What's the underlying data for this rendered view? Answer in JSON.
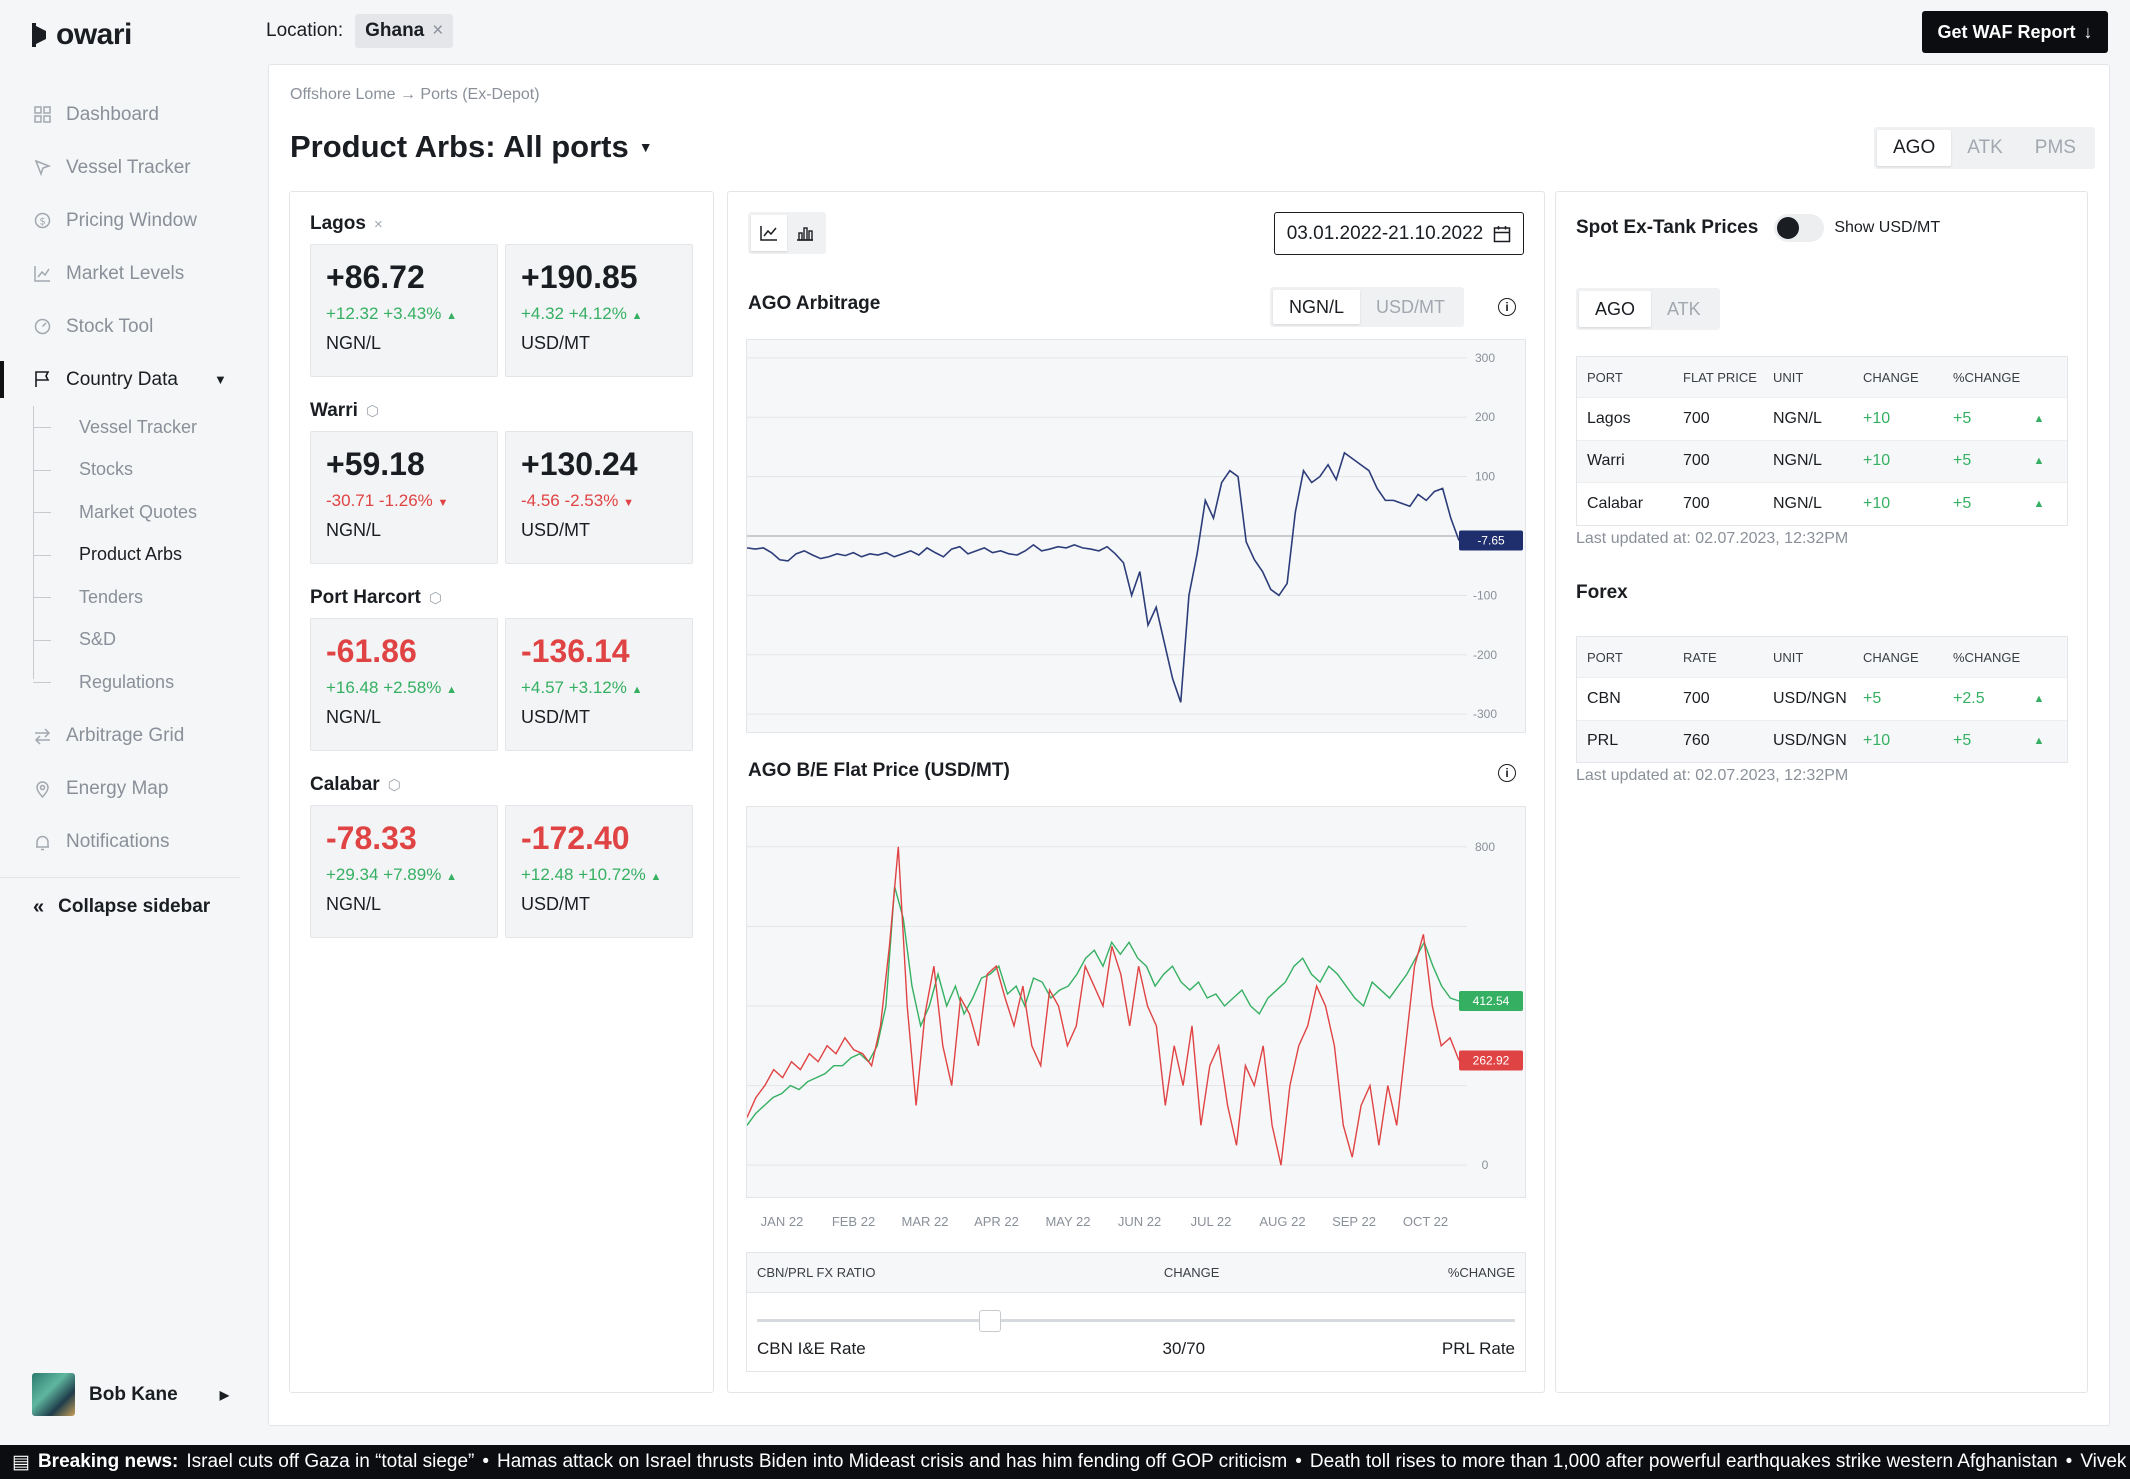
{
  "app": {
    "logo_text": "owari"
  },
  "sidebar": {
    "items": [
      {
        "label": "Dashboard",
        "icon": "grid-icon"
      },
      {
        "label": "Vessel Tracker",
        "icon": "cursor-icon"
      },
      {
        "label": "Pricing Window",
        "icon": "dollar-circle-icon"
      },
      {
        "label": "Market Levels",
        "icon": "line-chart-icon"
      },
      {
        "label": "Stock Tool",
        "icon": "gauge-icon"
      },
      {
        "label": "Country Data",
        "icon": "flag-icon"
      }
    ],
    "subitems": [
      "Vessel Tracker",
      "Stocks",
      "Market Quotes",
      "Product Arbs",
      "Tenders",
      "S&D",
      "Regulations"
    ],
    "items_after": [
      {
        "label": "Arbitrage Grid",
        "icon": "swap-icon"
      },
      {
        "label": "Energy Map",
        "icon": "pin-icon"
      },
      {
        "label": "Notifications",
        "icon": "bell-icon"
      }
    ],
    "collapse_label": "Collapse sidebar",
    "user_name": "Bob Kane"
  },
  "topbar": {
    "location_label": "Location:",
    "location_value": "Ghana",
    "report_button": "Get WAF Report"
  },
  "main": {
    "breadcrumb": "Offshore Lome → Ports (Ex-Depot)",
    "title": "Product Arbs: All ports",
    "product_tabs": [
      "AGO",
      "ATK",
      "PMS"
    ]
  },
  "ports": [
    {
      "name": "Lagos",
      "action": "×",
      "ngn": {
        "value": "+86.72",
        "change": "+12.32 +3.43%",
        "dir": "up",
        "unit": "NGN/L"
      },
      "usd": {
        "value": "+190.85",
        "change": "+4.32 +4.12%",
        "dir": "up",
        "unit": "USD/MT"
      }
    },
    {
      "name": "Warri",
      "action": "⬡",
      "ngn": {
        "value": "+59.18",
        "change": "-30.71 -1.26%",
        "dir": "down",
        "unit": "NGN/L"
      },
      "usd": {
        "value": "+130.24",
        "change": "-4.56 -2.53%",
        "dir": "down",
        "unit": "USD/MT"
      }
    },
    {
      "name": "Port Harcort",
      "action": "⬡",
      "ngn": {
        "value": "-61.86",
        "change": "+16.48 +2.58%",
        "dir": "up",
        "unit": "NGN/L"
      },
      "usd": {
        "value": "-136.14",
        "change": "+4.57 +3.12%",
        "dir": "up",
        "unit": "USD/MT"
      }
    },
    {
      "name": "Calabar",
      "action": "⬡",
      "ngn": {
        "value": "-78.33",
        "change": "+29.34 +7.89%",
        "dir": "up",
        "unit": "NGN/L"
      },
      "usd": {
        "value": "-172.40",
        "change": "+12.48 +10.72%",
        "dir": "up",
        "unit": "USD/MT"
      }
    }
  ],
  "middle": {
    "date_range": "03.01.2022-21.10.2022",
    "arb_title": "AGO Arbitrage",
    "unit_tabs": [
      "NGN/L",
      "USD/MT"
    ],
    "flat_title": "AGO B/E Flat Price (USD/MT)",
    "ratio": {
      "col1": "CBN/PRL FX RATIO",
      "col2": "CHANGE",
      "col3": "%CHANGE",
      "left": "CBN I&E Rate",
      "value": "30/70",
      "right": "PRL Rate",
      "position": 0.3
    }
  },
  "chart_data": [
    {
      "type": "line",
      "ylim": [
        -330,
        330
      ],
      "yticks": [
        300,
        200,
        100,
        -100,
        -200,
        -300
      ],
      "current_label": "-7.65",
      "colors": {
        "line": "#2d3d7a",
        "label": "#1f2f6e"
      },
      "series": [
        {
          "values": [
            -20,
            -22,
            -20,
            -28,
            -40,
            -42,
            -30,
            -25,
            -32,
            -38,
            -35,
            -30,
            -33,
            -28,
            -35,
            -30,
            -32,
            -28,
            -35,
            -30,
            -25,
            -32,
            -20,
            -28,
            -35,
            -22,
            -18,
            -30,
            -25,
            -20,
            -28,
            -25,
            -30,
            -32,
            -25,
            -15,
            -25,
            -22,
            -18,
            -20,
            -15,
            -20,
            -22,
            -25,
            -18,
            -30,
            -45,
            -100,
            -60,
            -150,
            -120,
            -180,
            -240,
            -280,
            -100,
            -30,
            60,
            30,
            90,
            110,
            100,
            -10,
            -40,
            -60,
            -90,
            -100,
            -80,
            40,
            110,
            90,
            100,
            120,
            95,
            140,
            130,
            120,
            110,
            80,
            60,
            60,
            55,
            50,
            70,
            60,
            75,
            80,
            30,
            -7.65
          ]
        }
      ]
    },
    {
      "type": "line",
      "xlabel_ticks": [
        "JAN 22",
        "FEB 22",
        "MAR 22",
        "APR 22",
        "MAY 22",
        "JUN 22",
        "JUL 22",
        "AUG 22",
        "SEP 22",
        "OCT 22"
      ],
      "ylim": [
        -80,
        900
      ],
      "yticks": [
        800,
        0
      ],
      "series": [
        {
          "label": "412.54",
          "color": "#35b062",
          "values": [
            100,
            130,
            150,
            170,
            180,
            200,
            190,
            210,
            220,
            230,
            250,
            250,
            270,
            280,
            260,
            300,
            400,
            700,
            620,
            450,
            350,
            400,
            480,
            400,
            450,
            380,
            420,
            470,
            480,
            500,
            430,
            450,
            400,
            470,
            460,
            420,
            440,
            450,
            480,
            520,
            540,
            500,
            560,
            530,
            560,
            520,
            500,
            450,
            480,
            500,
            460,
            440,
            460,
            420,
            430,
            400,
            420,
            440,
            400,
            380,
            420,
            440,
            460,
            500,
            520,
            480,
            460,
            500,
            480,
            450,
            420,
            400,
            460,
            440,
            420,
            450,
            480,
            520,
            560,
            500,
            450,
            420,
            412.54
          ]
        },
        {
          "label": "262.92",
          "color": "#e04343",
          "values": [
            120,
            170,
            200,
            240,
            220,
            260,
            240,
            280,
            260,
            300,
            280,
            320,
            290,
            280,
            250,
            350,
            550,
            800,
            400,
            150,
            380,
            500,
            300,
            200,
            420,
            380,
            300,
            480,
            500,
            420,
            350,
            450,
            300,
            250,
            440,
            400,
            300,
            350,
            500,
            450,
            400,
            550,
            480,
            350,
            500,
            400,
            350,
            150,
            300,
            200,
            350,
            100,
            250,
            300,
            150,
            50,
            250,
            200,
            300,
            100,
            0,
            200,
            300,
            350,
            450,
            400,
            300,
            100,
            20,
            150,
            200,
            50,
            200,
            100,
            300,
            500,
            580,
            400,
            300,
            320,
            262.92
          ]
        }
      ]
    }
  ],
  "right": {
    "spot_title": "Spot Ex-Tank Prices",
    "toggle_label": "Show USD/MT",
    "tabs": [
      "AGO",
      "ATK"
    ],
    "spot_headers": [
      "PORT",
      "FLAT PRICE",
      "UNIT",
      "CHANGE",
      "%CHANGE"
    ],
    "spot_rows": [
      [
        "Lagos",
        "700",
        "NGN/L",
        "+10",
        "+5"
      ],
      [
        "Warri",
        "700",
        "NGN/L",
        "+10",
        "+5"
      ],
      [
        "Calabar",
        "700",
        "NGN/L",
        "+10",
        "+5"
      ]
    ],
    "updated": "Last updated at: 02.07.2023, 12:32PM",
    "forex_title": "Forex",
    "forex_headers": [
      "PORT",
      "RATE",
      "UNIT",
      "CHANGE",
      "%CHANGE"
    ],
    "forex_rows": [
      [
        "CBN",
        "700",
        "USD/NGN",
        "+5",
        "+2.5"
      ],
      [
        "PRL",
        "760",
        "USD/NGN",
        "+10",
        "+5"
      ]
    ],
    "forex_updated": "Last updated at: 02.07.2023, 12:32PM"
  },
  "ticker": {
    "label": "Breaking news:",
    "items": [
      "Israel cuts off Gaza in “total siege”",
      "Hamas attack on Israel thrusts Biden into Mideast crisis and has him fending off GOP criticism",
      "Death toll rises to more than 1,000 after powerful earthquakes strike western Afghanistan",
      "Vivek Ramasw"
    ]
  }
}
